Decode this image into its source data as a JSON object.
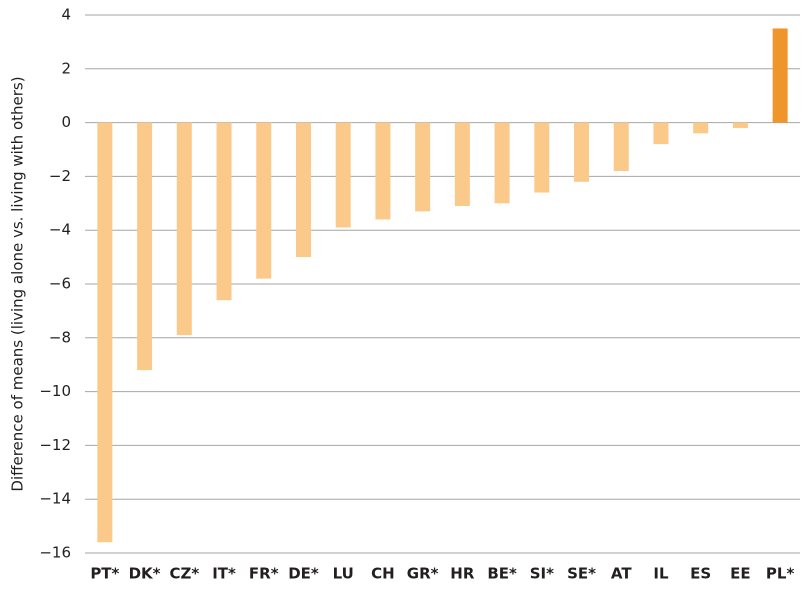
{
  "chart_data": {
    "type": "bar",
    "y_label": "Difference of means (living alone vs. living with others)",
    "categories": [
      "PT*",
      "DK*",
      "CZ*",
      "IT*",
      "FR*",
      "DE*",
      "LU",
      "CH",
      "GR*",
      "HR",
      "BE*",
      "SI*",
      "SE*",
      "AT",
      "IL",
      "ES",
      "EE",
      "PL*"
    ],
    "values": [
      -15.6,
      -9.2,
      -7.9,
      -6.6,
      -5.8,
      -5.0,
      -3.9,
      -3.6,
      -3.3,
      -3.1,
      -3.0,
      -2.6,
      -2.2,
      -1.8,
      -0.8,
      -0.4,
      -0.2,
      3.5
    ],
    "colors": [
      "#fbc98a",
      "#fbc98a",
      "#fbc98a",
      "#fbc98a",
      "#fbc98a",
      "#fbc98a",
      "#fbc98a",
      "#fbc98a",
      "#fbc98a",
      "#fbc98a",
      "#fbc98a",
      "#fbc98a",
      "#fbc98a",
      "#fbc98a",
      "#fbc98a",
      "#fbc98a",
      "#fbc98a",
      "#f0952a"
    ],
    "ylim": [
      -16,
      4
    ],
    "yticks": [
      4,
      2,
      0,
      {
        "value": -2,
        "label": "−2"
      },
      {
        "value": -4,
        "label": "−4"
      },
      {
        "value": -6,
        "label": "−6"
      },
      {
        "value": -8,
        "label": "−8"
      },
      {
        "value": -10,
        "label": "−10"
      },
      {
        "value": -12,
        "label": "−12"
      },
      {
        "value": -14,
        "label": "−14"
      },
      {
        "value": -16,
        "label": "−16"
      }
    ],
    "grid": true
  }
}
